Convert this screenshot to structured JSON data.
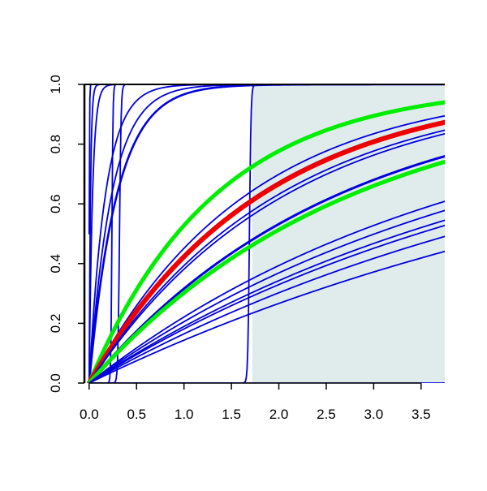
{
  "chart_data": {
    "type": "line",
    "title": "",
    "xlabel": "",
    "ylabel": "",
    "xlim": [
      -0.05,
      3.75
    ],
    "ylim": [
      0,
      1
    ],
    "grid": false,
    "x_ticks": [
      "0.0",
      "0.5",
      "1.0",
      "1.5",
      "2.0",
      "2.5",
      "3.0",
      "3.5"
    ],
    "y_ticks": [
      "0.0",
      "0.2",
      "0.4",
      "0.6",
      "0.8",
      "1.0"
    ],
    "shaded_region": {
      "x_from": 1.72,
      "x_to": 3.75,
      "color": "#e0ecec"
    },
    "colors": {
      "blue": "#0000dd",
      "red": "#ee0000",
      "green": "#00ee00",
      "axis": "#000000"
    },
    "series": [
      {
        "kind": "exponential",
        "rate": 70,
        "color": "#0000dd",
        "width": 1.8
      },
      {
        "kind": "exponential",
        "rate": 28,
        "color": "#0000dd",
        "width": 1.8
      },
      {
        "kind": "exponential",
        "rate": 5.8,
        "color": "#0000dd",
        "width": 1.8
      },
      {
        "kind": "exponential",
        "rate": 4.2,
        "color": "#0000dd",
        "width": 1.8
      },
      {
        "kind": "exponential",
        "rate": 3.4,
        "color": "#0000dd",
        "width": 2.6
      },
      {
        "kind": "step",
        "x0": 0.0,
        "k": 400,
        "color": "#0000dd",
        "width": 1.8
      },
      {
        "kind": "step",
        "x0": 0.24,
        "k": 180,
        "color": "#0000dd",
        "width": 1.8
      },
      {
        "kind": "step",
        "x0": 0.32,
        "k": 120,
        "color": "#0000dd",
        "width": 1.8
      },
      {
        "kind": "step",
        "x0": 1.69,
        "k": 120,
        "color": "#0000dd",
        "width": 1.8
      },
      {
        "kind": "exponential",
        "rate": 0.75,
        "color": "#00ee00",
        "width": 5
      },
      {
        "kind": "exponential",
        "rate": 0.6,
        "color": "#0000dd",
        "width": 1.8
      },
      {
        "kind": "exponential",
        "rate": 0.56,
        "color": "#0000dd",
        "width": 1.8
      },
      {
        "kind": "exponential",
        "rate": 0.55,
        "color": "#ee0000",
        "width": 6
      },
      {
        "kind": "exponential",
        "rate": 0.5,
        "color": "#0000dd",
        "width": 1.8
      },
      {
        "kind": "exponential",
        "rate": 0.48,
        "color": "#0000dd",
        "width": 1.8
      },
      {
        "kind": "exponential",
        "rate": 0.38,
        "color": "#0000dd",
        "width": 3
      },
      {
        "kind": "exponential",
        "rate": 0.36,
        "color": "#00ee00",
        "width": 5
      },
      {
        "kind": "exponential",
        "rate": 0.25,
        "color": "#0000dd",
        "width": 1.8
      },
      {
        "kind": "exponential",
        "rate": 0.23,
        "color": "#0000dd",
        "width": 1.8
      },
      {
        "kind": "exponential",
        "rate": 0.21,
        "color": "#0000dd",
        "width": 1.8
      },
      {
        "kind": "exponential",
        "rate": 0.2,
        "color": "#0000dd",
        "width": 1.8
      },
      {
        "kind": "exponential",
        "rate": 0.18,
        "color": "#0000dd",
        "width": 1.8
      },
      {
        "kind": "exponential",
        "rate": 0.155,
        "color": "#0000dd",
        "width": 1.8
      },
      {
        "kind": "exponential",
        "rate": 0.0,
        "color": "#0000dd",
        "width": 1.8
      },
      {
        "kind": "constant",
        "y": 1.0,
        "x_from": 1.73,
        "color": "#0000dd",
        "width": 1.8
      }
    ]
  }
}
